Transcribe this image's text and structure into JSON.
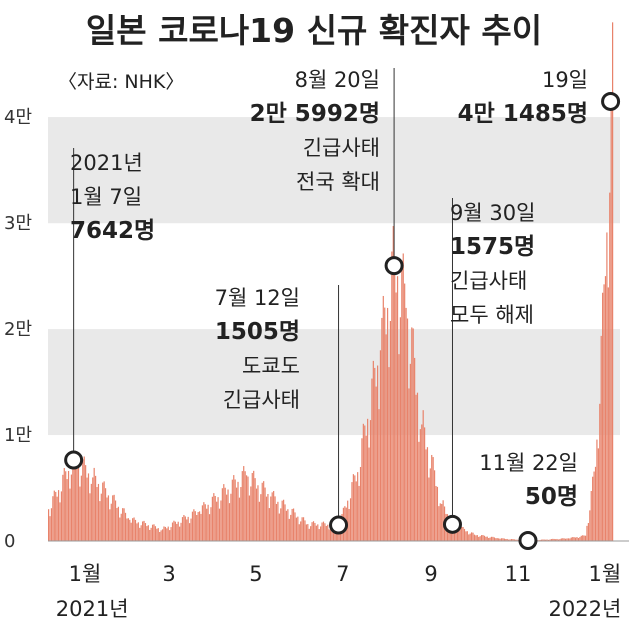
{
  "title": "일본 코로나19 신규 확진자 추이",
  "source": "〈자료: NHK〉",
  "chart_data": {
    "type": "bar",
    "y_unit": "명",
    "ylim": [
      0,
      42000
    ],
    "y_ticks": [
      {
        "value": 0,
        "label": "0"
      },
      {
        "value": 10000,
        "label": "1만"
      },
      {
        "value": 20000,
        "label": "2만"
      },
      {
        "value": 30000,
        "label": "3만"
      },
      {
        "value": 40000,
        "label": "4만"
      }
    ],
    "x_range": [
      "2020-12-20",
      "2022-01-20"
    ],
    "x_ticks": [
      {
        "date": "2021-01-15",
        "label": "1월"
      },
      {
        "date": "2021-03-15",
        "label": "3"
      },
      {
        "date": "2021-05-15",
        "label": "5"
      },
      {
        "date": "2021-07-15",
        "label": "7"
      },
      {
        "date": "2021-09-15",
        "label": "9"
      },
      {
        "date": "2021-11-15",
        "label": "11"
      },
      {
        "date": "2022-01-15",
        "label": "1월"
      }
    ],
    "year_labels": [
      {
        "date": "2021-01-20",
        "label": "2021년"
      },
      {
        "date": "2022-01-01",
        "label": "2022년"
      }
    ],
    "grid": "alternating horizontal bands",
    "bar_color": "#e8836b",
    "band_color": "#e9e9e9",
    "keypoints": [
      {
        "date": "2020-12-20",
        "value": 3000
      },
      {
        "date": "2021-01-07",
        "value": 7642
      },
      {
        "date": "2021-01-20",
        "value": 6000
      },
      {
        "date": "2021-02-15",
        "value": 2000
      },
      {
        "date": "2021-03-10",
        "value": 1100
      },
      {
        "date": "2021-04-05",
        "value": 2800
      },
      {
        "date": "2021-05-08",
        "value": 6200
      },
      {
        "date": "2021-05-25",
        "value": 4200
      },
      {
        "date": "2021-06-20",
        "value": 1600
      },
      {
        "date": "2021-07-12",
        "value": 1505
      },
      {
        "date": "2021-07-25",
        "value": 6500
      },
      {
        "date": "2021-08-10",
        "value": 18000
      },
      {
        "date": "2021-08-20",
        "value": 25992
      },
      {
        "date": "2021-08-28",
        "value": 22000
      },
      {
        "date": "2021-09-08",
        "value": 11000
      },
      {
        "date": "2021-09-22",
        "value": 3500
      },
      {
        "date": "2021-09-30",
        "value": 1575
      },
      {
        "date": "2021-10-15",
        "value": 600
      },
      {
        "date": "2021-11-01",
        "value": 250
      },
      {
        "date": "2021-11-22",
        "value": 50
      },
      {
        "date": "2021-12-20",
        "value": 250
      },
      {
        "date": "2022-01-01",
        "value": 500
      },
      {
        "date": "2022-01-08",
        "value": 7000
      },
      {
        "date": "2022-01-15",
        "value": 25000
      },
      {
        "date": "2022-01-19",
        "value": 41485
      }
    ],
    "annotations": [
      {
        "id": "a1",
        "date": "2021-01-07",
        "value": 7642,
        "lines": [
          {
            "text": "2021년",
            "style": "date"
          },
          {
            "text": "1월 7일",
            "style": "date"
          },
          {
            "text": "7642명",
            "style": "value"
          }
        ]
      },
      {
        "id": "a2",
        "date": "2021-07-12",
        "value": 1505,
        "lines": [
          {
            "text": "7월 12일",
            "style": "date"
          },
          {
            "text": "1505명",
            "style": "value"
          },
          {
            "text": "도쿄도",
            "style": "note"
          },
          {
            "text": "긴급사태",
            "style": "note"
          }
        ]
      },
      {
        "id": "a3",
        "date": "2021-08-20",
        "value": 25992,
        "lines": [
          {
            "text": "8월 20일",
            "style": "date"
          },
          {
            "text": "2만 5992명",
            "style": "value"
          },
          {
            "text": "긴급사태",
            "style": "note"
          },
          {
            "text": "전국 확대",
            "style": "note"
          }
        ]
      },
      {
        "id": "a4",
        "date": "2021-09-30",
        "value": 1575,
        "lines": [
          {
            "text": "9월 30일",
            "style": "date"
          },
          {
            "text": "1575명",
            "style": "value"
          },
          {
            "text": "긴급사태",
            "style": "note"
          },
          {
            "text": "모두 해제",
            "style": "note"
          }
        ]
      },
      {
        "id": "a5",
        "date": "2021-11-22",
        "value": 50,
        "lines": [
          {
            "text": "11월 22일",
            "style": "date"
          },
          {
            "text": "50명",
            "style": "value"
          }
        ]
      },
      {
        "id": "a6",
        "date": "2022-01-19",
        "value": 41485,
        "lines": [
          {
            "text": "19일",
            "style": "date"
          },
          {
            "text": "4만 1485명",
            "style": "value"
          }
        ]
      }
    ]
  }
}
